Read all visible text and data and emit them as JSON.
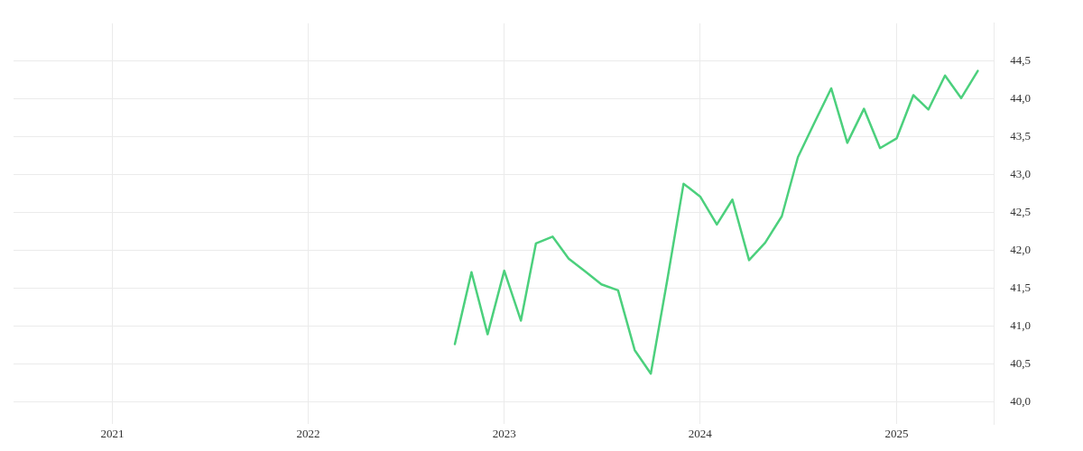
{
  "chart_data": {
    "type": "line",
    "x": [
      "2022-10",
      "2022-11",
      "2022-12",
      "2023-01",
      "2023-02",
      "2023-03",
      "2023-04",
      "2023-05",
      "2023-06",
      "2023-07",
      "2023-08",
      "2023-09",
      "2023-10",
      "2023-11",
      "2023-12",
      "2024-01",
      "2024-02",
      "2024-03",
      "2024-04",
      "2024-05",
      "2024-06",
      "2024-07",
      "2024-08",
      "2024-09",
      "2024-10",
      "2024-11",
      "2024-12",
      "2025-01",
      "2025-02",
      "2025-03",
      "2025-04",
      "2025-05",
      "2025-06"
    ],
    "series": [
      {
        "color": "#4cd07d",
        "values": [
          40.76,
          41.71,
          40.89,
          41.73,
          41.07,
          42.09,
          42.18,
          41.89,
          41.72,
          41.55,
          41.47,
          40.68,
          40.37,
          41.62,
          42.88,
          42.71,
          42.34,
          42.67,
          41.87,
          42.1,
          42.45,
          43.23,
          43.69,
          44.14,
          43.42,
          43.87,
          43.35,
          43.48,
          44.05,
          43.86,
          44.31,
          44.01,
          44.37
        ]
      }
    ],
    "xlim": [
      "2020-07",
      "2025-07"
    ],
    "xticks": [
      {
        "value": "2021",
        "label": "2021"
      },
      {
        "value": "2022",
        "label": "2022"
      },
      {
        "value": "2023",
        "label": "2023"
      },
      {
        "value": "2024",
        "label": "2024"
      },
      {
        "value": "2025",
        "label": "2025"
      }
    ],
    "ylim": [
      39.7,
      45.0
    ],
    "yticks": [
      {
        "value": 40.0,
        "label": "40,0"
      },
      {
        "value": 40.5,
        "label": "40,5"
      },
      {
        "value": 41.0,
        "label": "41,0"
      },
      {
        "value": 41.5,
        "label": "41,5"
      },
      {
        "value": 42.0,
        "label": "42,0"
      },
      {
        "value": 42.5,
        "label": "42,5"
      },
      {
        "value": 43.0,
        "label": "43,0"
      },
      {
        "value": 43.5,
        "label": "43,5"
      },
      {
        "value": 44.0,
        "label": "44,0"
      },
      {
        "value": 44.5,
        "label": "44,5"
      }
    ],
    "grid": true,
    "legend": false,
    "marker": "none",
    "line_style": "solid"
  }
}
